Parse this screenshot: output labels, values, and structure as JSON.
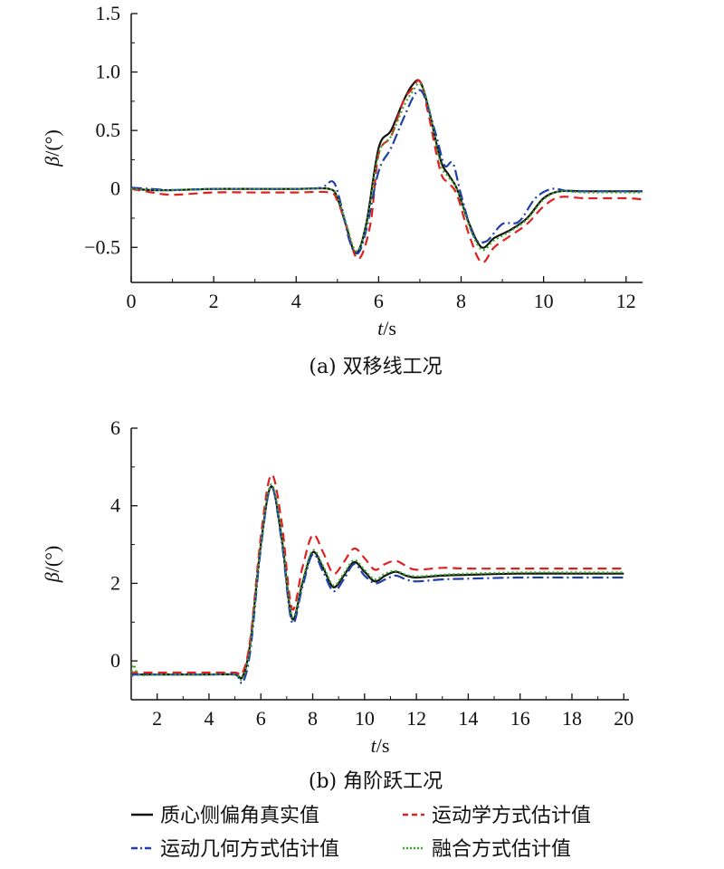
{
  "chart_data": [
    {
      "type": "line",
      "caption": "(a) 双移线工况",
      "xlabel_var": "t",
      "xlabel_unit": "/s",
      "ylabel_var": "β",
      "ylabel_unit": "/(°)",
      "xlim": [
        0,
        12.4
      ],
      "ylim": [
        -0.8,
        1.5
      ],
      "xticks": [
        0,
        2,
        4,
        6,
        8,
        10,
        12
      ],
      "yticks": [
        -0.5,
        0,
        0.5,
        1.0,
        1.5
      ],
      "ytick_labels": [
        "−0.5",
        "0",
        "0.5",
        "1.0",
        "1.5"
      ],
      "grid": false,
      "series": [
        {
          "name": "质心侧偏角真实值",
          "color": "#111111",
          "dash": "solid",
          "x": [
            0,
            0.5,
            1,
            2,
            3,
            4,
            4.8,
            5.0,
            5.2,
            5.45,
            5.7,
            6.0,
            6.3,
            6.6,
            6.8,
            7.0,
            7.2,
            7.5,
            7.7,
            7.9,
            8.2,
            8.5,
            8.8,
            9.2,
            9.6,
            10.0,
            10.4,
            11,
            12,
            12.4
          ],
          "y": [
            0,
            -0.01,
            -0.01,
            0,
            0,
            0,
            0,
            -0.08,
            -0.3,
            -0.55,
            -0.3,
            0.35,
            0.5,
            0.75,
            0.88,
            0.92,
            0.7,
            0.25,
            0.12,
            0,
            -0.3,
            -0.5,
            -0.42,
            -0.35,
            -0.25,
            -0.08,
            -0.02,
            -0.02,
            -0.02,
            -0.02
          ]
        },
        {
          "name": "运动学方式估计值",
          "color": "#e02020",
          "dash": "10,6",
          "x": [
            0,
            0.5,
            1,
            2,
            3,
            4,
            4.8,
            5.0,
            5.2,
            5.5,
            5.8,
            6.0,
            6.3,
            6.6,
            6.8,
            7.0,
            7.2,
            7.5,
            7.7,
            7.9,
            8.2,
            8.5,
            8.8,
            9.2,
            9.6,
            10.0,
            10.4,
            11,
            12,
            12.4
          ],
          "y": [
            0,
            -0.03,
            -0.05,
            -0.03,
            -0.03,
            -0.03,
            -0.03,
            -0.1,
            -0.3,
            -0.6,
            -0.3,
            0.3,
            0.45,
            0.75,
            0.85,
            0.92,
            0.65,
            0.15,
            0.05,
            -0.05,
            -0.4,
            -0.63,
            -0.5,
            -0.4,
            -0.3,
            -0.15,
            -0.07,
            -0.08,
            -0.08,
            -0.09
          ]
        },
        {
          "name": "运动几何方式估计值",
          "color": "#1f3fa8",
          "dash": "12,4,2,4",
          "x": [
            0,
            0.5,
            1,
            2,
            3,
            4,
            4.6,
            4.9,
            5.1,
            5.3,
            5.5,
            5.7,
            6.0,
            6.3,
            6.6,
            6.9,
            7.1,
            7.4,
            7.6,
            7.8,
            8.0,
            8.3,
            8.6,
            9.0,
            9.4,
            9.8,
            10.2,
            10.6,
            11,
            12,
            12.4
          ],
          "y": [
            0.01,
            0,
            -0.01,
            0,
            0,
            0,
            0.01,
            0.06,
            -0.15,
            -0.45,
            -0.55,
            -0.35,
            0.15,
            0.35,
            0.6,
            0.82,
            0.8,
            0.45,
            0.2,
            0.22,
            -0.05,
            -0.4,
            -0.45,
            -0.3,
            -0.28,
            -0.08,
            0,
            -0.02,
            -0.02,
            -0.02,
            -0.02
          ]
        },
        {
          "name": "融合方式估计值",
          "color": "#3aa820",
          "dash": "2,3",
          "x": [
            0,
            0.5,
            1,
            2,
            3,
            4,
            4.8,
            5.0,
            5.2,
            5.45,
            5.7,
            6.0,
            6.3,
            6.6,
            6.8,
            7.0,
            7.2,
            7.5,
            7.7,
            7.9,
            8.2,
            8.5,
            8.8,
            9.2,
            9.6,
            10.0,
            10.4,
            11,
            12,
            12.4
          ],
          "y": [
            0,
            -0.01,
            -0.01,
            0,
            0,
            0,
            0,
            -0.07,
            -0.28,
            -0.53,
            -0.32,
            0.3,
            0.45,
            0.7,
            0.82,
            0.9,
            0.72,
            0.22,
            0.1,
            0,
            -0.32,
            -0.52,
            -0.44,
            -0.36,
            -0.26,
            -0.09,
            -0.02,
            -0.03,
            -0.03,
            -0.03
          ]
        }
      ]
    },
    {
      "type": "line",
      "caption": "(b) 角阶跃工况",
      "xlabel_var": "t",
      "xlabel_unit": "/s",
      "ylabel_var": "β",
      "ylabel_unit": "/(°)",
      "xlim": [
        1,
        20.2
      ],
      "ylim": [
        -1,
        6
      ],
      "xticks": [
        2,
        4,
        6,
        8,
        10,
        12,
        14,
        16,
        18,
        20
      ],
      "yticks": [
        0,
        2,
        4,
        6
      ],
      "ytick_labels": [
        "0",
        "2",
        "4",
        "6"
      ],
      "grid": false,
      "series": [
        {
          "name": "质心侧偏角真实值",
          "color": "#111111",
          "dash": "solid",
          "x": [
            1,
            1.1,
            1.3,
            2,
            3,
            4,
            5,
            5.3,
            5.6,
            6.0,
            6.4,
            6.8,
            7.2,
            7.6,
            8.0,
            8.4,
            8.8,
            9.2,
            9.6,
            10.0,
            10.4,
            10.8,
            11.2,
            11.6,
            12,
            13,
            14,
            16,
            18,
            20
          ],
          "y": [
            -0.4,
            -0.35,
            -0.35,
            -0.35,
            -0.35,
            -0.35,
            -0.35,
            -0.4,
            0.5,
            3.0,
            4.5,
            3.2,
            1.1,
            2.0,
            2.8,
            2.4,
            1.9,
            2.2,
            2.55,
            2.3,
            2.05,
            2.2,
            2.3,
            2.2,
            2.15,
            2.2,
            2.22,
            2.25,
            2.25,
            2.25
          ]
        },
        {
          "name": "运动学方式估计值",
          "color": "#e02020",
          "dash": "10,6",
          "x": [
            1,
            1.1,
            1.3,
            2,
            3,
            4,
            5,
            5.3,
            5.6,
            6.0,
            6.4,
            6.8,
            7.2,
            7.6,
            8.0,
            8.4,
            8.8,
            9.2,
            9.6,
            10.0,
            10.4,
            10.8,
            11.2,
            11.6,
            12,
            13,
            14,
            16,
            18,
            20
          ],
          "y": [
            -0.4,
            -0.3,
            -0.3,
            -0.3,
            -0.3,
            -0.3,
            -0.3,
            -0.3,
            0.6,
            3.2,
            4.8,
            3.6,
            1.35,
            2.4,
            3.25,
            2.8,
            2.25,
            2.55,
            2.9,
            2.65,
            2.35,
            2.5,
            2.58,
            2.45,
            2.35,
            2.4,
            2.38,
            2.38,
            2.38,
            2.38
          ]
        },
        {
          "name": "运动几何方式估计值",
          "color": "#1f3fa8",
          "dash": "12,4,2,4",
          "x": [
            1,
            1.1,
            1.3,
            2,
            3,
            4,
            5,
            5.3,
            5.6,
            6.0,
            6.4,
            6.8,
            7.2,
            7.6,
            8.0,
            8.4,
            8.8,
            9.2,
            9.6,
            10.0,
            10.4,
            10.8,
            11.2,
            11.6,
            12,
            13,
            14,
            16,
            18,
            20
          ],
          "y": [
            -0.4,
            -0.35,
            -0.35,
            -0.35,
            -0.35,
            -0.35,
            -0.35,
            -0.55,
            0.3,
            2.9,
            4.5,
            3.1,
            1.0,
            1.9,
            2.75,
            2.3,
            1.8,
            2.1,
            2.5,
            2.2,
            2.0,
            2.1,
            2.2,
            2.1,
            2.05,
            2.1,
            2.12,
            2.15,
            2.15,
            2.15
          ]
        },
        {
          "name": "融合方式估计值",
          "color": "#3aa820",
          "dash": "2,3",
          "x": [
            1,
            1.1,
            1.3,
            2,
            3,
            4,
            5,
            5.3,
            5.6,
            6.0,
            6.4,
            6.8,
            7.2,
            7.6,
            8.0,
            8.4,
            8.8,
            9.2,
            9.6,
            10.0,
            10.4,
            10.8,
            11.2,
            11.6,
            12,
            13,
            14,
            16,
            18,
            20
          ],
          "y": [
            -0.4,
            -0.1,
            -0.35,
            -0.35,
            -0.35,
            -0.35,
            -0.35,
            -0.45,
            0.45,
            3.0,
            4.55,
            3.25,
            1.15,
            2.05,
            2.85,
            2.45,
            1.95,
            2.25,
            2.6,
            2.35,
            2.1,
            2.25,
            2.32,
            2.22,
            2.18,
            2.22,
            2.25,
            2.28,
            2.28,
            2.28
          ]
        }
      ]
    }
  ],
  "legend": [
    {
      "label": "质心侧偏角真实值",
      "color": "#111111",
      "dash": "solid"
    },
    {
      "label": "运动学方式估计值",
      "color": "#e02020",
      "dash": "10,6"
    },
    {
      "label": "运动几何方式估计值",
      "color": "#1f3fa8",
      "dash": "12,4,2,4"
    },
    {
      "label": "融合方式估计值",
      "color": "#3aa820",
      "dash": "2,3"
    }
  ]
}
